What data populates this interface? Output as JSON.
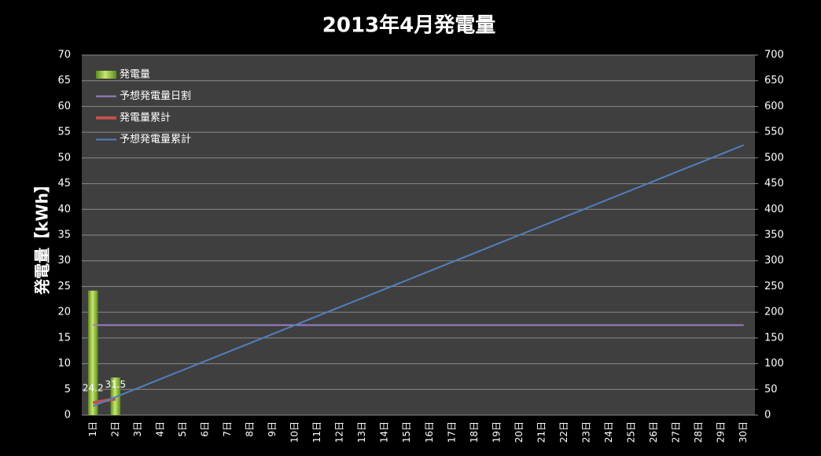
{
  "chart_data": {
    "type": "bar",
    "title": "2013年4月発電量",
    "y_label": "発電量【kWh】",
    "categories": [
      "1日",
      "2日",
      "3日",
      "4日",
      "5日",
      "6日",
      "7日",
      "8日",
      "9日",
      "10日",
      "11日",
      "12日",
      "13日",
      "14日",
      "15日",
      "16日",
      "17日",
      "18日",
      "19日",
      "20日",
      "21日",
      "22日",
      "23日",
      "24日",
      "25日",
      "26日",
      "27日",
      "28日",
      "29日",
      "30日"
    ],
    "series": [
      {
        "name": "発電量",
        "type": "bar",
        "color": "#8fc03c",
        "values": [
          24.2,
          7.3,
          null,
          null,
          null,
          null,
          null,
          null,
          null,
          null,
          null,
          null,
          null,
          null,
          null,
          null,
          null,
          null,
          null,
          null,
          null,
          null,
          null,
          null,
          null,
          null,
          null,
          null,
          null,
          null
        ]
      },
      {
        "name": "予想発電量日割",
        "type": "line",
        "color": "#9b7fc7",
        "values": [
          17.5,
          17.5,
          17.5,
          17.5,
          17.5,
          17.5,
          17.5,
          17.5,
          17.5,
          17.5,
          17.5,
          17.5,
          17.5,
          17.5,
          17.5,
          17.5,
          17.5,
          17.5,
          17.5,
          17.5,
          17.5,
          17.5,
          17.5,
          17.5,
          17.5,
          17.5,
          17.5,
          17.5,
          17.5,
          17.5
        ]
      },
      {
        "name": "発電量累計",
        "type": "line",
        "axis": "y2",
        "color": "#c0504d",
        "show_labels": true,
        "values": [
          24.2,
          31.5,
          null,
          null,
          null,
          null,
          null,
          null,
          null,
          null,
          null,
          null,
          null,
          null,
          null,
          null,
          null,
          null,
          null,
          null,
          null,
          null,
          null,
          null,
          null,
          null,
          null,
          null,
          null,
          null
        ]
      },
      {
        "name": "予想発電量累計",
        "type": "line",
        "axis": "y2",
        "color": "#4f81bd",
        "values": [
          17.5,
          35,
          52.5,
          70,
          87.5,
          105,
          122.5,
          140,
          157.5,
          175,
          192.5,
          210,
          227.5,
          245,
          262.5,
          280,
          297.5,
          315,
          332.5,
          350,
          367.5,
          385,
          402.5,
          420,
          437.5,
          455,
          472.5,
          490,
          507.5,
          525
        ]
      }
    ],
    "ylim": [
      0,
      70
    ],
    "yticks": [
      0,
      5,
      10,
      15,
      20,
      25,
      30,
      35,
      40,
      45,
      50,
      55,
      60,
      65,
      70
    ],
    "y2lim": [
      0,
      700
    ],
    "y2ticks": [
      0,
      50,
      100,
      150,
      200,
      250,
      300,
      350,
      400,
      450,
      500,
      550,
      600,
      650,
      700
    ],
    "grid": true,
    "legend": "top-left"
  }
}
